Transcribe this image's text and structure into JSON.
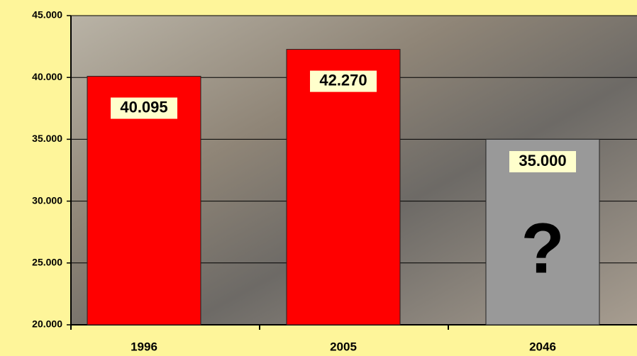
{
  "chart_data": {
    "type": "bar",
    "categories": [
      "1996",
      "2005",
      "2046"
    ],
    "values": [
      40095,
      42270,
      35000
    ],
    "value_labels": [
      "40.095",
      "42.270",
      "35.000"
    ],
    "colors": [
      "#ff0000",
      "#ff0000",
      "#999999"
    ],
    "annotation": "?",
    "ylim": [
      20000,
      45000
    ],
    "yticks": [
      {
        "value": 20000,
        "label": "20.000"
      },
      {
        "value": 25000,
        "label": "25.000"
      },
      {
        "value": 30000,
        "label": "30.000"
      },
      {
        "value": 35000,
        "label": "35.000"
      },
      {
        "value": 40000,
        "label": "40.000"
      },
      {
        "value": 45000,
        "label": "45.000"
      }
    ],
    "grid": true
  }
}
